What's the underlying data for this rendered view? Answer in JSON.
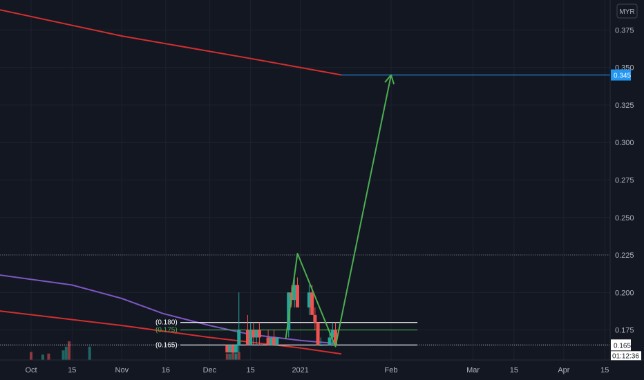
{
  "chart_data": {
    "type": "candlestick",
    "currency": "MYR",
    "ylim": [
      0.155,
      0.395
    ],
    "y_ticks": [
      0.175,
      0.2,
      0.225,
      0.25,
      0.275,
      0.3,
      0.325,
      0.35,
      0.375
    ],
    "y_tick_labels": [
      "0.175",
      "0.200",
      "0.225",
      "0.250",
      "0.275",
      "0.300",
      "0.325",
      "0.350",
      "0.375"
    ],
    "x_ticks": [
      {
        "date": "2020-10-01",
        "label": "Oct"
      },
      {
        "date": "2020-10-15",
        "label": "15"
      },
      {
        "date": "2020-11-01",
        "label": "Nov"
      },
      {
        "date": "2020-11-16",
        "label": "16"
      },
      {
        "date": "2020-12-01",
        "label": "Dec"
      },
      {
        "date": "2020-12-15",
        "label": "15"
      },
      {
        "date": "2021-01-01",
        "label": "2021"
      },
      {
        "date": "2021-02-01",
        "label": "Feb"
      },
      {
        "date": "2021-03-01",
        "label": "Mar"
      },
      {
        "date": "2021-03-15",
        "label": "15"
      },
      {
        "date": "2021-04-01",
        "label": "Apr"
      },
      {
        "date": "2021-04-15",
        "label": "15"
      }
    ],
    "candles": [
      {
        "date": "2020-12-07",
        "open": 0.165,
        "high": 0.165,
        "low": 0.16,
        "close": 0.16
      },
      {
        "date": "2020-12-08",
        "open": 0.16,
        "high": 0.165,
        "low": 0.16,
        "close": 0.165
      },
      {
        "date": "2020-12-09",
        "open": 0.165,
        "high": 0.165,
        "low": 0.16,
        "close": 0.16
      },
      {
        "date": "2020-12-10",
        "open": 0.16,
        "high": 0.165,
        "low": 0.155,
        "close": 0.165
      },
      {
        "date": "2020-12-11",
        "open": 0.165,
        "high": 0.2,
        "low": 0.16,
        "close": 0.175
      },
      {
        "date": "2020-12-14",
        "open": 0.175,
        "high": 0.185,
        "low": 0.165,
        "close": 0.165
      },
      {
        "date": "2020-12-15",
        "open": 0.165,
        "high": 0.18,
        "low": 0.165,
        "close": 0.175
      },
      {
        "date": "2020-12-16",
        "open": 0.175,
        "high": 0.18,
        "low": 0.165,
        "close": 0.17
      },
      {
        "date": "2020-12-17",
        "open": 0.17,
        "high": 0.175,
        "low": 0.165,
        "close": 0.175
      },
      {
        "date": "2020-12-18",
        "open": 0.175,
        "high": 0.18,
        "low": 0.165,
        "close": 0.17
      },
      {
        "date": "2020-12-21",
        "open": 0.17,
        "high": 0.175,
        "low": 0.165,
        "close": 0.165
      },
      {
        "date": "2020-12-22",
        "open": 0.165,
        "high": 0.17,
        "low": 0.165,
        "close": 0.17
      },
      {
        "date": "2020-12-23",
        "open": 0.17,
        "high": 0.175,
        "low": 0.165,
        "close": 0.165
      },
      {
        "date": "2020-12-24",
        "open": 0.165,
        "high": 0.17,
        "low": 0.165,
        "close": 0.17
      },
      {
        "date": "2020-12-28",
        "open": 0.175,
        "high": 0.2,
        "low": 0.17,
        "close": 0.2
      },
      {
        "date": "2020-12-29",
        "open": 0.2,
        "high": 0.205,
        "low": 0.19,
        "close": 0.195
      },
      {
        "date": "2020-12-30",
        "open": 0.195,
        "high": 0.21,
        "low": 0.19,
        "close": 0.205
      },
      {
        "date": "2020-12-31",
        "open": 0.205,
        "high": 0.21,
        "low": 0.19,
        "close": 0.19
      },
      {
        "date": "2021-01-04",
        "open": 0.19,
        "high": 0.205,
        "low": 0.185,
        "close": 0.2
      },
      {
        "date": "2021-01-05",
        "open": 0.2,
        "high": 0.205,
        "low": 0.185,
        "close": 0.185
      },
      {
        "date": "2021-01-06",
        "open": 0.185,
        "high": 0.19,
        "low": 0.175,
        "close": 0.18
      },
      {
        "date": "2021-01-07",
        "open": 0.18,
        "high": 0.18,
        "low": 0.165,
        "close": 0.165
      },
      {
        "date": "2021-01-08",
        "open": 0.165,
        "high": 0.17,
        "low": 0.165,
        "close": 0.165
      },
      {
        "date": "2021-01-11",
        "open": 0.165,
        "high": 0.175,
        "low": 0.165,
        "close": 0.17
      },
      {
        "date": "2021-01-12",
        "open": 0.17,
        "high": 0.18,
        "low": 0.165,
        "close": 0.175
      },
      {
        "date": "2021-01-13",
        "open": 0.175,
        "high": 0.18,
        "low": 0.165,
        "close": 0.165
      }
    ],
    "volume": [
      {
        "date": "2020-10-01",
        "value": 1.5,
        "up": false
      },
      {
        "date": "2020-10-05",
        "value": 1,
        "up": true
      },
      {
        "date": "2020-10-07",
        "value": 1.2,
        "up": false
      },
      {
        "date": "2020-10-12",
        "value": 1.8,
        "up": true
      },
      {
        "date": "2020-10-13",
        "value": 2.5,
        "up": true
      },
      {
        "date": "2020-10-14",
        "value": 3.5,
        "up": false
      },
      {
        "date": "2020-10-21",
        "value": 2.5,
        "up": true
      },
      {
        "date": "2020-12-07",
        "value": 1.2,
        "up": false
      },
      {
        "date": "2020-12-08",
        "value": 1.2,
        "up": true
      },
      {
        "date": "2020-12-09",
        "value": 1.8,
        "up": false
      },
      {
        "date": "2020-12-10",
        "value": 1.2,
        "up": true
      },
      {
        "date": "2020-12-11",
        "value": 1.5,
        "up": false
      }
    ],
    "moving_averages": [
      {
        "color": "#d32f2f",
        "points": [
          [
            "2020-09-19",
            0.389
          ],
          [
            "2020-11-01",
            0.371
          ],
          [
            "2020-12-15",
            0.356
          ],
          [
            "2021-01-15",
            0.345
          ]
        ]
      },
      {
        "color": "#7e57c2",
        "points": [
          [
            "2020-09-19",
            0.212
          ],
          [
            "2020-10-15",
            0.205
          ],
          [
            "2020-11-01",
            0.196
          ],
          [
            "2020-11-15",
            0.186
          ],
          [
            "2020-12-01",
            0.178
          ],
          [
            "2020-12-15",
            0.172
          ],
          [
            "2021-01-01",
            0.168
          ],
          [
            "2021-01-13",
            0.166
          ]
        ]
      },
      {
        "color": "#d32f2f",
        "points": [
          [
            "2020-09-19",
            0.188
          ],
          [
            "2020-11-01",
            0.178
          ],
          [
            "2020-12-01",
            0.17
          ],
          [
            "2021-01-01",
            0.163
          ],
          [
            "2021-01-15",
            0.159
          ]
        ]
      }
    ],
    "horizontal_levels": [
      {
        "label": "(0.180)",
        "value": 0.18,
        "color": "#ffffff",
        "from": "2020-11-21",
        "to": "2021-02-10",
        "style": "solid"
      },
      {
        "label": "(0.175)",
        "value": 0.175,
        "color": "#4caf50",
        "from": "2020-11-21",
        "to": "2021-02-10",
        "style": "solid"
      },
      {
        "label": "(0.165)",
        "value": 0.165,
        "color": "#ffffff",
        "from": "2020-11-21",
        "to": "2021-02-10",
        "style": "solid"
      },
      {
        "label": "",
        "value": 0.165,
        "color": "#d1d4dc",
        "from": "2020-09-19",
        "to": "2021-05-20",
        "style": "dotted"
      },
      {
        "label": "",
        "value": 0.225,
        "color": "#787b86",
        "from": "2020-09-19",
        "to": "2021-05-20",
        "style": "dotted"
      },
      {
        "label": "",
        "value": 0.345,
        "color": "#2196f3",
        "from": "2021-01-15",
        "to": "2021-05-20",
        "style": "solid"
      }
    ],
    "projection_path": [
      [
        "2020-12-27",
        0.169
      ],
      [
        "2020-12-31",
        0.226
      ],
      [
        "2021-01-13",
        0.164
      ],
      [
        "2021-02-01",
        0.345
      ]
    ],
    "badges": [
      {
        "label": "0.345",
        "value": 0.345,
        "bg": "#2196f3",
        "fg": "#ffffff"
      },
      {
        "label": "0.165",
        "value": 0.165,
        "bg": "#ffffff",
        "fg": "#131722"
      }
    ],
    "countdown": "01:12:36"
  }
}
